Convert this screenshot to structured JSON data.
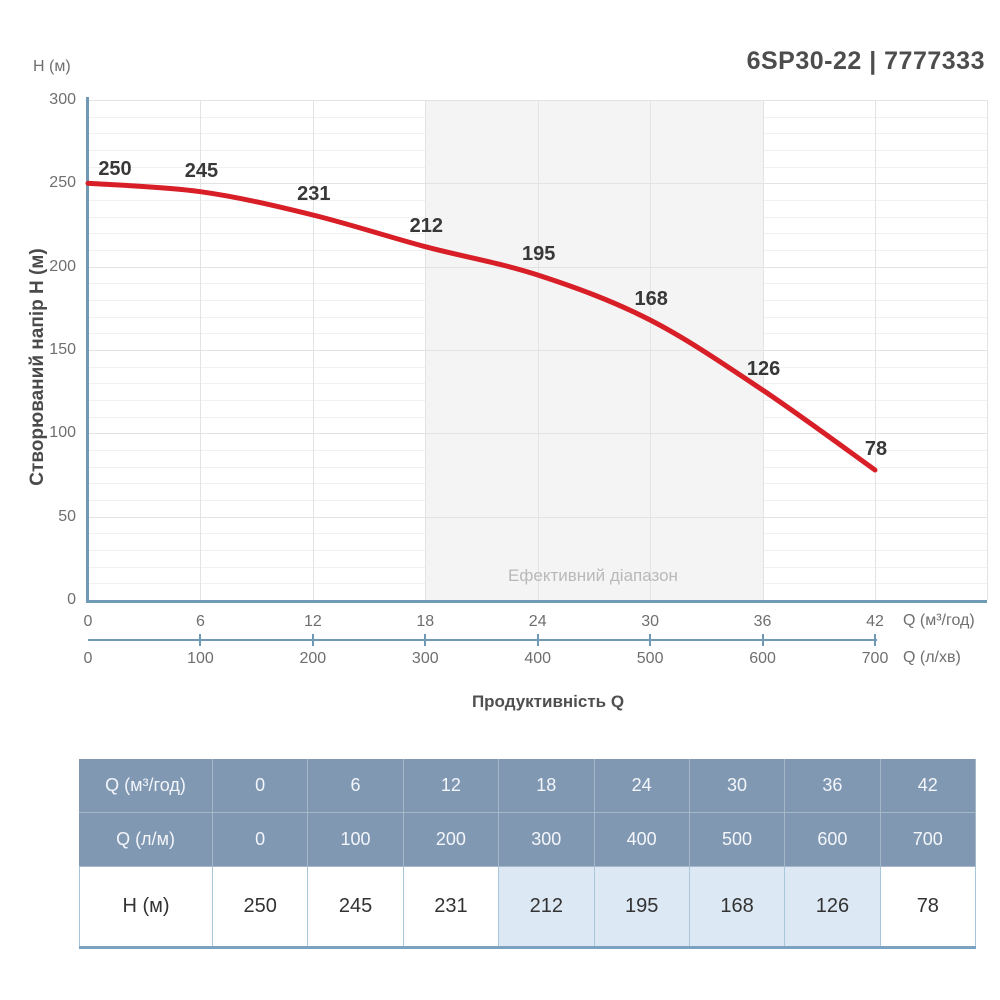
{
  "page": {
    "title": "6SP30-22 | 7777333"
  },
  "chart_data": {
    "type": "line",
    "title": "6SP30-22 | 7777333",
    "y_axis_unit_label": "H (м)",
    "y_axis_title": "Створюваний напір H (м)",
    "x_axis_title": "Продуктивність Q",
    "x_primary_unit": "Q (м³/год)",
    "x_secondary_unit": "Q (л/хв)",
    "x_primary": [
      0,
      6,
      12,
      18,
      24,
      30,
      36,
      42
    ],
    "x_secondary": [
      0,
      100,
      200,
      300,
      400,
      500,
      600,
      700
    ],
    "series": [
      {
        "name": "H",
        "values": [
          250,
          245,
          231,
          212,
          195,
          168,
          126,
          78
        ]
      }
    ],
    "y_ticks": [
      0,
      50,
      100,
      150,
      200,
      250,
      300
    ],
    "ylim": [
      0,
      300
    ],
    "xlim": [
      0,
      42
    ],
    "minor_y_step": 10,
    "grid": true,
    "legend": "none",
    "effective_range": {
      "label": "Ефективний діапазон",
      "from_x": 18,
      "to_x": 36
    },
    "colors": {
      "curve": "#d81e26",
      "axis": "#6f99b4",
      "grid_major": "#e3e3e3",
      "grid_minor": "#f1f1f1",
      "band": "#f4f4f4",
      "band_label": "#b9b9b9",
      "tick_label": "#6f6f6f",
      "data_label": "#383838"
    }
  },
  "table": {
    "rows": [
      {
        "label": "Q (м³/год)",
        "kind": "header",
        "values": [
          "0",
          "6",
          "12",
          "18",
          "24",
          "30",
          "36",
          "42"
        ]
      },
      {
        "label": "Q (л/м)",
        "kind": "header",
        "values": [
          "0",
          "100",
          "200",
          "300",
          "400",
          "500",
          "600",
          "700"
        ]
      },
      {
        "label": "H (м)",
        "kind": "data",
        "values": [
          "250",
          "245",
          "231",
          "212",
          "195",
          "168",
          "126",
          "78"
        ],
        "highlight": [
          3,
          4,
          5,
          6
        ]
      }
    ]
  }
}
